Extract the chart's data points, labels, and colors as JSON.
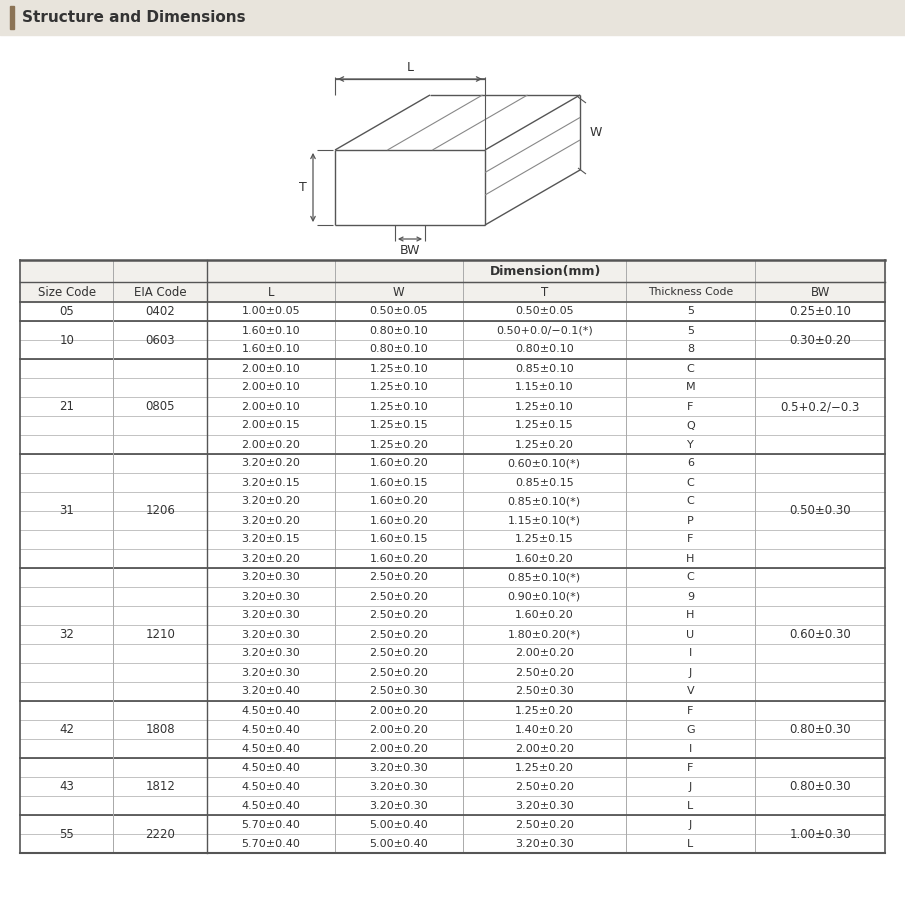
{
  "title": "Structure and Dimensions",
  "title_bg": "#e8e4dc",
  "title_bar_color": "#8B7355",
  "rows": [
    [
      "05",
      "0402",
      "1.00±0.05",
      "0.50±0.05",
      "0.50±0.05",
      "5",
      "0.25±0.10"
    ],
    [
      "10",
      "0603",
      "1.60±0.10",
      "0.80±0.10",
      "0.50+0.0/−0.1(*)",
      "5",
      "0.30±0.20"
    ],
    [
      "",
      "",
      "1.60±0.10",
      "0.80±0.10",
      "0.80±0.10",
      "8",
      ""
    ],
    [
      "21",
      "0805",
      "2.00±0.10",
      "1.25±0.10",
      "0.85±0.10",
      "C",
      "0.5+0.2/−0.3"
    ],
    [
      "",
      "",
      "2.00±0.10",
      "1.25±0.10",
      "1.15±0.10",
      "M",
      ""
    ],
    [
      "",
      "",
      "2.00±0.10",
      "1.25±0.10",
      "1.25±0.10",
      "F",
      ""
    ],
    [
      "",
      "",
      "2.00±0.15",
      "1.25±0.15",
      "1.25±0.15",
      "Q",
      ""
    ],
    [
      "",
      "",
      "2.00±0.20",
      "1.25±0.20",
      "1.25±0.20",
      "Y",
      ""
    ],
    [
      "31",
      "1206",
      "3.20±0.20",
      "1.60±0.20",
      "0.60±0.10(*)",
      "6",
      "0.50±0.30"
    ],
    [
      "",
      "",
      "3.20±0.15",
      "1.60±0.15",
      "0.85±0.15",
      "C",
      ""
    ],
    [
      "",
      "",
      "3.20±0.20",
      "1.60±0.20",
      "0.85±0.10(*)",
      "C",
      ""
    ],
    [
      "",
      "",
      "3.20±0.20",
      "1.60±0.20",
      "1.15±0.10(*)",
      "P",
      ""
    ],
    [
      "",
      "",
      "3.20±0.15",
      "1.60±0.15",
      "1.25±0.15",
      "F",
      ""
    ],
    [
      "",
      "",
      "3.20±0.20",
      "1.60±0.20",
      "1.60±0.20",
      "H",
      ""
    ],
    [
      "32",
      "1210",
      "3.20±0.30",
      "2.50±0.20",
      "0.85±0.10(*)",
      "C",
      "0.60±0.30"
    ],
    [
      "",
      "",
      "3.20±0.30",
      "2.50±0.20",
      "0.90±0.10(*)",
      "9",
      ""
    ],
    [
      "",
      "",
      "3.20±0.30",
      "2.50±0.20",
      "1.60±0.20",
      "H",
      ""
    ],
    [
      "",
      "",
      "3.20±0.30",
      "2.50±0.20",
      "1.80±0.20(*)",
      "U",
      ""
    ],
    [
      "",
      "",
      "3.20±0.30",
      "2.50±0.20",
      "2.00±0.20",
      "I",
      ""
    ],
    [
      "",
      "",
      "3.20±0.30",
      "2.50±0.20",
      "2.50±0.20",
      "J",
      ""
    ],
    [
      "",
      "",
      "3.20±0.40",
      "2.50±0.30",
      "2.50±0.30",
      "V",
      ""
    ],
    [
      "42",
      "1808",
      "4.50±0.40",
      "2.00±0.20",
      "1.25±0.20",
      "F",
      "0.80±0.30"
    ],
    [
      "",
      "",
      "4.50±0.40",
      "2.00±0.20",
      "1.40±0.20",
      "G",
      ""
    ],
    [
      "",
      "",
      "4.50±0.40",
      "2.00±0.20",
      "2.00±0.20",
      "I",
      ""
    ],
    [
      "43",
      "1812",
      "4.50±0.40",
      "3.20±0.30",
      "1.25±0.20",
      "F",
      "0.80±0.30"
    ],
    [
      "",
      "",
      "4.50±0.40",
      "3.20±0.30",
      "2.50±0.20",
      "J",
      ""
    ],
    [
      "",
      "",
      "4.50±0.40",
      "3.20±0.30",
      "3.20±0.30",
      "L",
      ""
    ],
    [
      "55",
      "2220",
      "5.70±0.40",
      "5.00±0.40",
      "2.50±0.20",
      "J",
      "1.00±0.30"
    ],
    [
      "",
      "",
      "5.70±0.40",
      "5.00±0.40",
      "3.20±0.30",
      "L",
      ""
    ]
  ],
  "group_boundaries": [
    0,
    1,
    3,
    8,
    14,
    21,
    24,
    27,
    29
  ],
  "group_labels_size": [
    "05",
    "10",
    "21",
    "31",
    "32",
    "42",
    "43",
    "55"
  ],
  "group_labels_eia": [
    "0402",
    "0603",
    "0805",
    "1206",
    "1210",
    "1808",
    "1812",
    "2220"
  ],
  "group_bw": [
    "0.25±0.10",
    "0.30±0.20",
    "0.5+0.2/−0.3",
    "0.50±0.30",
    "0.60±0.30",
    "0.80±0.30",
    "0.80±0.30",
    "1.00±0.30"
  ],
  "text_color": "#333333",
  "line_color": "#aaaaaa",
  "thick_line_color": "#555555",
  "bg_color": "#ffffff"
}
